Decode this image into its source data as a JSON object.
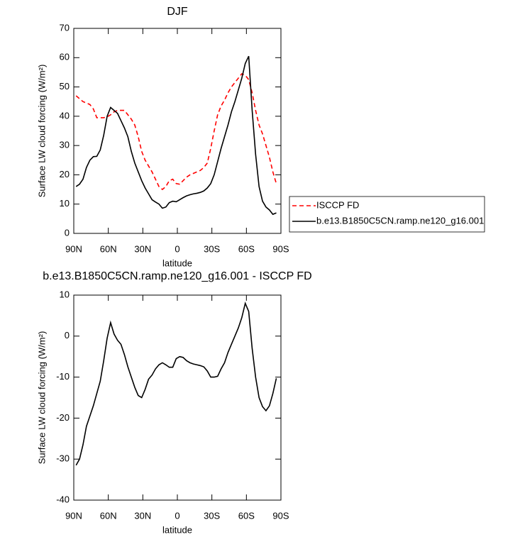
{
  "chart_data": [
    {
      "type": "line",
      "title": "DJF",
      "x_label": "latitude",
      "y_label": "Surface LW cloud forcing (W/m²)",
      "x": [
        88,
        85,
        82,
        79,
        76,
        73,
        70,
        67,
        64,
        61,
        58,
        55,
        52,
        49,
        46,
        43,
        40,
        37,
        34,
        31,
        28,
        25,
        22,
        19,
        16,
        13,
        10,
        7,
        4,
        1,
        -2,
        -5,
        -8,
        -11,
        -14,
        -17,
        -20,
        -23,
        -26,
        -29,
        -32,
        -35,
        -38,
        -41,
        -44,
        -47,
        -50,
        -53,
        -56,
        -59,
        -62,
        -65,
        -68,
        -71,
        -74,
        -77,
        -80,
        -83,
        -86
      ],
      "series": [
        {
          "name": "ISCCP FD",
          "color": "#ff0000",
          "dash": "dashed",
          "values": [
            47,
            46,
            45,
            44.5,
            44,
            42.5,
            39.5,
            39.5,
            39.5,
            39.8,
            40.5,
            41.5,
            42,
            42,
            42,
            40.5,
            39,
            37,
            33,
            28,
            25,
            23,
            21,
            18.5,
            16,
            15,
            16,
            18,
            18.5,
            17,
            16.8,
            18,
            19.2,
            20,
            20.5,
            21,
            21.5,
            22.5,
            24,
            29,
            35,
            40.5,
            43.5,
            45.5,
            48,
            50,
            51.5,
            53,
            54.5,
            54,
            52.5,
            48,
            42,
            37,
            34,
            30,
            26,
            21,
            17
          ]
        },
        {
          "name": "b.e13.B1850C5CN.ramp.ne120_g16.001",
          "color": "#000000",
          "dash": "solid",
          "values": [
            16,
            16.8,
            18.5,
            22.5,
            25,
            26.2,
            26.3,
            28.5,
            33.5,
            40,
            43,
            42,
            41,
            38.5,
            36,
            33,
            28,
            24,
            21,
            18,
            15.5,
            13.5,
            11.5,
            10.7,
            10,
            8.6,
            9,
            10.5,
            11,
            10.8,
            11.5,
            12.2,
            12.8,
            13.2,
            13.5,
            13.7,
            14,
            14.5,
            15.5,
            17,
            20,
            24.5,
            29,
            33,
            37,
            41.5,
            45,
            49,
            53,
            58,
            60.5,
            42,
            27,
            16,
            11,
            9,
            8,
            6.5,
            7
          ]
        }
      ],
      "xlim": [
        90,
        -90
      ],
      "xticks": [
        {
          "value": 90,
          "label": "90N"
        },
        {
          "value": 60,
          "label": "60N"
        },
        {
          "value": 30,
          "label": "30N"
        },
        0,
        {
          "value": -30,
          "label": "30S"
        },
        {
          "value": -60,
          "label": "60S"
        },
        {
          "value": -90,
          "label": "90S"
        }
      ],
      "ylim": [
        0,
        70
      ],
      "yticks": [
        0,
        10,
        20,
        30,
        40,
        50,
        60,
        70
      ],
      "legend": "right"
    },
    {
      "type": "line",
      "title": "b.e13.B1850C5CN.ramp.ne120_g16.001 - ISCCP FD",
      "x_label": "latitude",
      "y_label": "Surface LW cloud forcing (W/m²)",
      "x": [
        88,
        85,
        82,
        79,
        76,
        73,
        70,
        67,
        64,
        61,
        58,
        55,
        52,
        49,
        46,
        43,
        40,
        37,
        34,
        31,
        28,
        25,
        22,
        19,
        16,
        13,
        10,
        7,
        4,
        1,
        -2,
        -5,
        -8,
        -11,
        -14,
        -17,
        -20,
        -23,
        -26,
        -29,
        -32,
        -35,
        -38,
        -41,
        -44,
        -47,
        -50,
        -53,
        -56,
        -59,
        -62,
        -65,
        -68,
        -71,
        -74,
        -77,
        -80,
        -83,
        -86
      ],
      "series": [
        {
          "color": "#000000",
          "dash": "solid",
          "values": [
            -31.5,
            -30,
            -26.5,
            -22,
            -19.5,
            -17,
            -14,
            -11,
            -6,
            -0.5,
            3.3,
            0.5,
            -1,
            -2,
            -4.5,
            -7.5,
            -10,
            -12.5,
            -14.5,
            -15,
            -13,
            -10.5,
            -9.5,
            -8,
            -7,
            -6.5,
            -7,
            -7.6,
            -7.6,
            -5.5,
            -5,
            -5.2,
            -6,
            -6.5,
            -6.8,
            -7,
            -7.2,
            -7.5,
            -8.5,
            -10,
            -10,
            -9.8,
            -8,
            -6.5,
            -4,
            -2,
            0,
            2,
            4.5,
            8,
            6,
            -3,
            -10,
            -15,
            -17.2,
            -18.2,
            -17,
            -14,
            -10.3
          ]
        }
      ],
      "xlim": [
        90,
        -90
      ],
      "xticks": [
        {
          "value": 90,
          "label": "90N"
        },
        {
          "value": 60,
          "label": "60N"
        },
        {
          "value": 30,
          "label": "30N"
        },
        0,
        {
          "value": -30,
          "label": "30S"
        },
        {
          "value": -60,
          "label": "60S"
        },
        {
          "value": -90,
          "label": "90S"
        }
      ],
      "ylim": [
        -40,
        10
      ],
      "yticks": [
        -40,
        -30,
        -20,
        -10,
        0,
        10
      ]
    }
  ]
}
